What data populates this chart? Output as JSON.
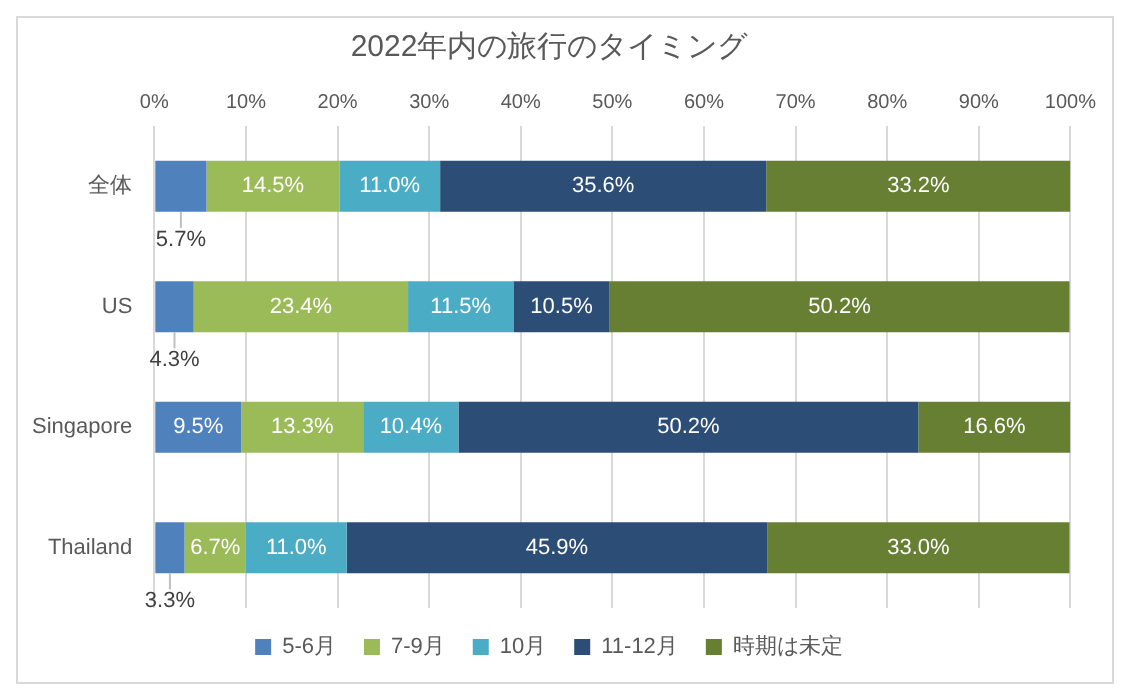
{
  "chart_data": {
    "type": "bar",
    "orientation": "horizontal",
    "stacked": true,
    "title": "2022年内の旅行のタイミング",
    "categories": [
      "全体",
      "US",
      "Singapore",
      "Thailand"
    ],
    "series": [
      {
        "name": "5-6月",
        "color": "#4f81bd",
        "values": [
          5.7,
          4.3,
          9.5,
          3.3
        ],
        "value_labels": [
          "5.7%",
          "4.3%",
          "9.5%",
          "3.3%"
        ]
      },
      {
        "name": "7-9月",
        "color": "#9bbb59",
        "values": [
          14.5,
          23.4,
          13.3,
          6.7
        ],
        "value_labels": [
          "14.5%",
          "23.4%",
          "13.3%",
          "6.7%"
        ]
      },
      {
        "name": "10月",
        "color": "#4bacc6",
        "values": [
          11.0,
          11.5,
          10.4,
          11.0
        ],
        "value_labels": [
          "11.0%",
          "11.5%",
          "10.4%",
          "11.0%"
        ]
      },
      {
        "name": "11-12月",
        "color": "#2c4d75",
        "values": [
          35.6,
          10.5,
          50.2,
          45.9
        ],
        "value_labels": [
          "35.6%",
          "10.5%",
          "50.2%",
          "45.9%"
        ]
      },
      {
        "name": "時期は未定",
        "color": "#677f32",
        "values": [
          33.2,
          50.2,
          16.6,
          33.0
        ],
        "value_labels": [
          "33.2%",
          "50.2%",
          "16.6%",
          "33.0%"
        ]
      }
    ],
    "xlim": [
      0,
      100
    ],
    "xticks": [
      {
        "value": 0,
        "label": "0%"
      },
      {
        "value": 10,
        "label": "10%"
      },
      {
        "value": 20,
        "label": "20%"
      },
      {
        "value": 30,
        "label": "30%"
      },
      {
        "value": 40,
        "label": "40%"
      },
      {
        "value": 50,
        "label": "50%"
      },
      {
        "value": 60,
        "label": "60%"
      },
      {
        "value": 70,
        "label": "70%"
      },
      {
        "value": 80,
        "label": "80%"
      },
      {
        "value": 90,
        "label": "90%"
      },
      {
        "value": 100,
        "label": "100%"
      }
    ],
    "grid": "x",
    "legend": "bottom"
  }
}
